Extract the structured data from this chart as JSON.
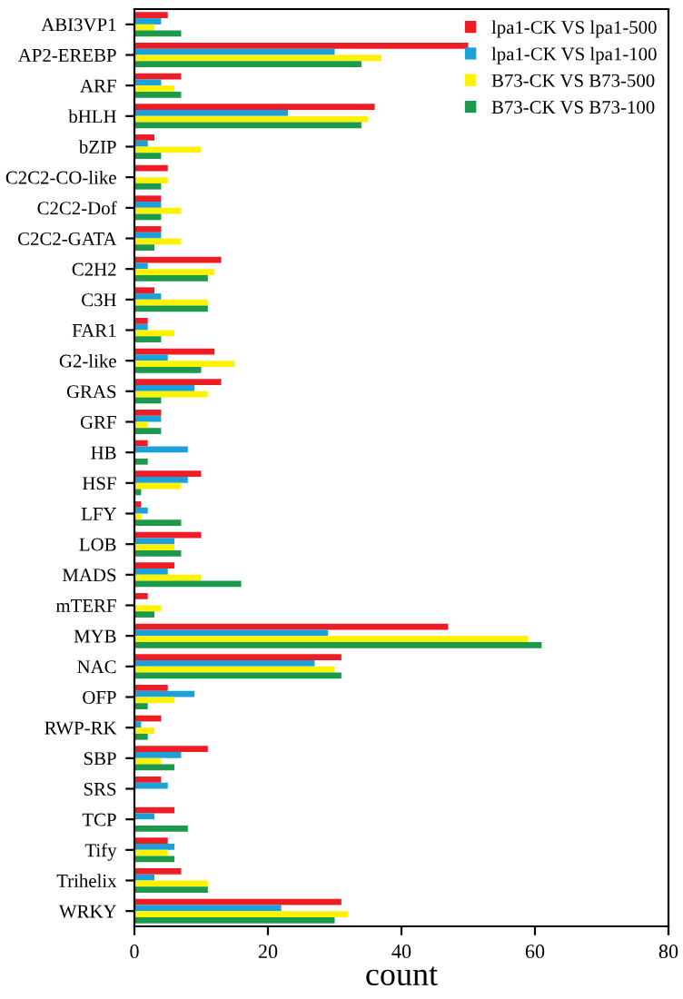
{
  "chart_data": {
    "type": "bar",
    "orientation": "horizontal",
    "xlabel": "count",
    "xlim": [
      0,
      80
    ],
    "xticks": [
      0,
      20,
      40,
      60,
      80
    ],
    "grid": false,
    "legend": "top right",
    "categories": [
      "ABI3VP1",
      "AP2-EREBP",
      "ARF",
      "bHLH",
      "bZIP",
      "C2C2-CO-like",
      "C2C2-Dof",
      "C2C2-GATA",
      "C2H2",
      "C3H",
      "FAR1",
      "G2-like",
      "GRAS",
      "GRF",
      "HB",
      "HSF",
      "LFY",
      "LOB",
      "MADS",
      "mTERF",
      "MYB",
      "NAC",
      "OFP",
      "RWP-RK",
      "SBP",
      "SRS",
      "TCP",
      "Tify",
      "Trihelix",
      "WRKY"
    ],
    "series": [
      {
        "name": "lpa1-CK VS lpa1-500",
        "color": "#ee1c25",
        "values": [
          5,
          50,
          7,
          36,
          3,
          5,
          4,
          4,
          13,
          3,
          2,
          12,
          13,
          4,
          2,
          10,
          1,
          10,
          6,
          2,
          47,
          31,
          5,
          4,
          11,
          4,
          6,
          5,
          7,
          31
        ]
      },
      {
        "name": "lpa1-CK VS lpa1-100",
        "color": "#1ba1d9",
        "values": [
          4,
          30,
          4,
          23,
          2,
          0,
          4,
          4,
          2,
          4,
          2,
          5,
          9,
          4,
          8,
          8,
          2,
          6,
          5,
          0,
          29,
          27,
          9,
          1,
          7,
          5,
          3,
          6,
          3,
          22
        ]
      },
      {
        "name": "B73-CK VS B73-500",
        "color": "#fff200",
        "values": [
          3,
          37,
          6,
          35,
          10,
          5,
          7,
          7,
          12,
          11,
          6,
          15,
          11,
          2,
          0,
          7,
          1,
          6,
          10,
          4,
          59,
          30,
          6,
          3,
          4,
          0,
          0,
          5,
          11,
          32
        ]
      },
      {
        "name": "B73-CK VS B73-100",
        "color": "#1a9a4a",
        "values": [
          7,
          34,
          7,
          34,
          4,
          4,
          4,
          3,
          11,
          11,
          4,
          10,
          4,
          4,
          2,
          1,
          7,
          7,
          16,
          3,
          61,
          31,
          2,
          2,
          6,
          0,
          8,
          6,
          11,
          30
        ]
      }
    ]
  }
}
